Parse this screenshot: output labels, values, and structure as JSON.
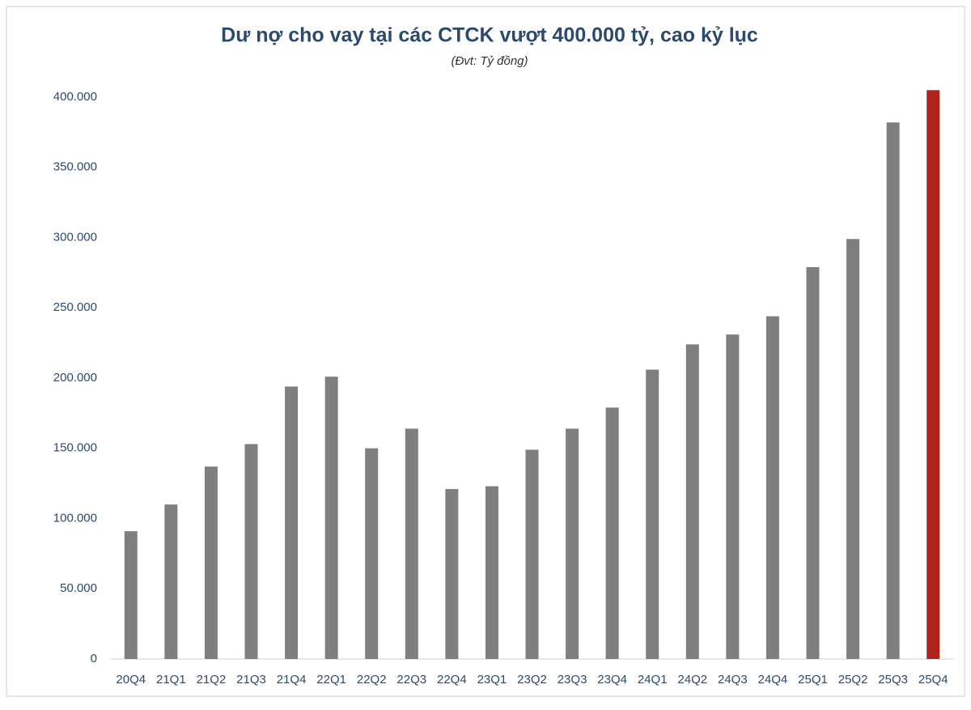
{
  "chart_data": {
    "type": "bar",
    "title": "Dư nợ cho vay tại các CTCK vượt 400.000 tỷ, cao kỷ lục",
    "subtitle": "(Đvt: Tỷ đồng)",
    "categories": [
      "20Q4",
      "21Q1",
      "21Q2",
      "21Q3",
      "21Q4",
      "22Q1",
      "22Q2",
      "22Q3",
      "22Q4",
      "23Q1",
      "23Q2",
      "23Q3",
      "23Q4",
      "24Q1",
      "24Q2",
      "24Q3",
      "24Q4",
      "25Q1",
      "25Q2",
      "25Q3",
      "25Q4"
    ],
    "values": [
      91000,
      110000,
      137000,
      153000,
      194000,
      201000,
      150000,
      164000,
      121000,
      123000,
      149000,
      164000,
      179000,
      206000,
      224000,
      231000,
      244000,
      279000,
      299000,
      382000,
      405000
    ],
    "colors": [
      "#7f7f7f",
      "#7f7f7f",
      "#7f7f7f",
      "#7f7f7f",
      "#7f7f7f",
      "#7f7f7f",
      "#7f7f7f",
      "#7f7f7f",
      "#7f7f7f",
      "#7f7f7f",
      "#7f7f7f",
      "#7f7f7f",
      "#7f7f7f",
      "#7f7f7f",
      "#7f7f7f",
      "#7f7f7f",
      "#7f7f7f",
      "#7f7f7f",
      "#7f7f7f",
      "#7f7f7f",
      "#b0231a"
    ],
    "ylim": [
      0,
      400000
    ],
    "yticks": [
      0,
      {
        "value": 50000,
        "label": "50.000"
      },
      {
        "value": 100000,
        "label": "100.000"
      },
      {
        "value": 150000,
        "label": "150.000"
      },
      {
        "value": 200000,
        "label": "200.000"
      },
      {
        "value": 250000,
        "label": "250.000"
      },
      {
        "value": 300000,
        "label": "300.000"
      },
      {
        "value": 350000,
        "label": "350.000"
      },
      {
        "value": 400000,
        "label": "400.000"
      }
    ],
    "grid": false
  }
}
